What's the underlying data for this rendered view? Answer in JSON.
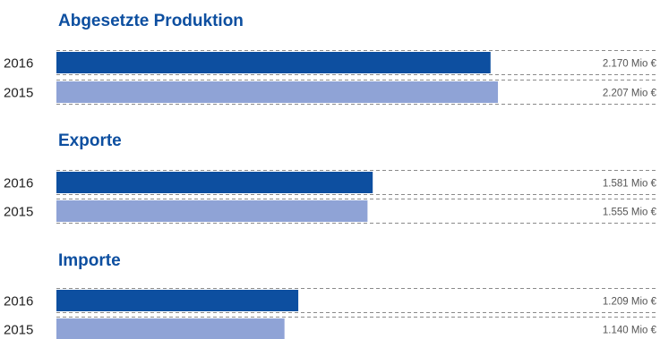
{
  "chart_data": [
    {
      "type": "bar",
      "orientation": "horizontal",
      "title": "Abgesetzte Produktion",
      "categories": [
        "2016",
        "2015"
      ],
      "values": [
        2170,
        2207
      ],
      "value_labels": [
        "2.170 Mio €",
        "2.207 Mio €"
      ],
      "unit": "Mio €"
    },
    {
      "type": "bar",
      "orientation": "horizontal",
      "title": "Exporte",
      "categories": [
        "2016",
        "2015"
      ],
      "values": [
        1581,
        1555
      ],
      "value_labels": [
        "1.581 Mio €",
        "1.555 Mio €"
      ],
      "unit": "Mio €"
    },
    {
      "type": "bar",
      "orientation": "horizontal",
      "title": "Importe",
      "categories": [
        "2016",
        "2015"
      ],
      "values": [
        1209,
        1140
      ],
      "value_labels": [
        "1.209 Mio €",
        "1.140 Mio €"
      ],
      "unit": "Mio €"
    }
  ],
  "colors": {
    "title": "#0d4fa0",
    "bar_2016": "#0d4fa0",
    "bar_2015": "#8fa3d6",
    "dashed_line": "#8a8a8a"
  }
}
